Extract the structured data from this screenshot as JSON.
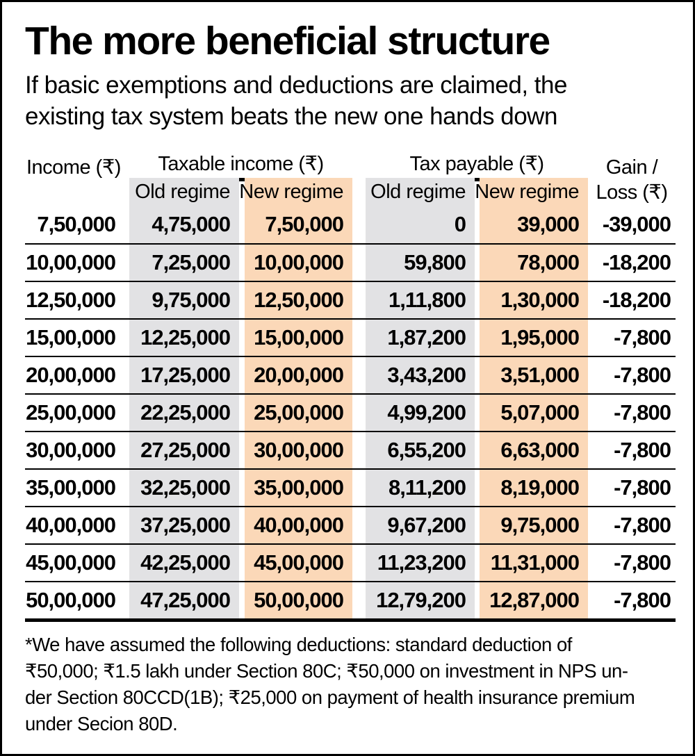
{
  "header": {
    "title": "The more beneficial structure",
    "subtitle_lines": [
      "If basic exemptions and deductions are claimed, the",
      "existing tax system beats the new one hands down"
    ]
  },
  "table": {
    "col_income": "Income (₹)",
    "group_taxable": "Taxable income (₹)",
    "group_tax_payable": "Tax payable (₹)",
    "col_gain_line1": "Gain /",
    "col_gain_line2": "Loss (₹)",
    "sub_old": "Old regime",
    "sub_new": "New regime",
    "rows": [
      {
        "income": "7,50,000",
        "taxable_old": "4,75,000",
        "taxable_new": "7,50,000",
        "tax_old": "0",
        "tax_new": "39,000",
        "gain_loss": "-39,000"
      },
      {
        "income": "10,00,000",
        "taxable_old": "7,25,000",
        "taxable_new": "10,00,000",
        "tax_old": "59,800",
        "tax_new": "78,000",
        "gain_loss": "-18,200"
      },
      {
        "income": "12,50,000",
        "taxable_old": "9,75,000",
        "taxable_new": "12,50,000",
        "tax_old": "1,11,800",
        "tax_new": "1,30,000",
        "gain_loss": "-18,200"
      },
      {
        "income": "15,00,000",
        "taxable_old": "12,25,000",
        "taxable_new": "15,00,000",
        "tax_old": "1,87,200",
        "tax_new": "1,95,000",
        "gain_loss": "-7,800"
      },
      {
        "income": "20,00,000",
        "taxable_old": "17,25,000",
        "taxable_new": "20,00,000",
        "tax_old": "3,43,200",
        "tax_new": "3,51,000",
        "gain_loss": "-7,800"
      },
      {
        "income": "25,00,000",
        "taxable_old": "22,25,000",
        "taxable_new": "25,00,000",
        "tax_old": "4,99,200",
        "tax_new": "5,07,000",
        "gain_loss": "-7,800"
      },
      {
        "income": "30,00,000",
        "taxable_old": "27,25,000",
        "taxable_new": "30,00,000",
        "tax_old": "6,55,200",
        "tax_new": "6,63,000",
        "gain_loss": "-7,800"
      },
      {
        "income": "35,00,000",
        "taxable_old": "32,25,000",
        "taxable_new": "35,00,000",
        "tax_old": "8,11,200",
        "tax_new": "8,19,000",
        "gain_loss": "-7,800"
      },
      {
        "income": "40,00,000",
        "taxable_old": "37,25,000",
        "taxable_new": "40,00,000",
        "tax_old": "9,67,200",
        "tax_new": "9,75,000",
        "gain_loss": "-7,800"
      },
      {
        "income": "45,00,000",
        "taxable_old": "42,25,000",
        "taxable_new": "45,00,000",
        "tax_old": "11,23,200",
        "tax_new": "11,31,000",
        "gain_loss": "-7,800"
      },
      {
        "income": "50,00,000",
        "taxable_old": "47,25,000",
        "taxable_new": "50,00,000",
        "tax_old": "12,79,200",
        "tax_new": "12,87,000",
        "gain_loss": "-7,800"
      }
    ]
  },
  "footnote": {
    "lines": [
      "*We have assumed the following deductions: standard deduction of",
      "₹50,000; ₹1.5 lakh under Section 80C; ₹50,000 on investment in NPS un-",
      "der Section 80CCD(1B); ₹25,000 on payment of health insurance premium",
      "under Secion 80D."
    ]
  },
  "colors": {
    "old_regime_bg": "#e2e2e4",
    "new_regime_bg": "#fbd8b8",
    "text": "#000000",
    "frame": "#000000"
  },
  "chart_data": {
    "type": "table",
    "title": "The more beneficial structure",
    "subtitle": "If basic exemptions and deductions are claimed, the existing tax system beats the new one hands down",
    "columns": [
      "Income (₹)",
      "Taxable income (₹) — Old regime",
      "Taxable income (₹) — New regime",
      "Tax payable (₹) — Old regime",
      "Tax payable (₹) — New regime",
      "Gain / Loss (₹)"
    ],
    "rows": [
      [
        750000,
        475000,
        750000,
        0,
        39000,
        -39000
      ],
      [
        1000000,
        725000,
        1000000,
        59800,
        78000,
        -18200
      ],
      [
        1250000,
        975000,
        1250000,
        111800,
        130000,
        -18200
      ],
      [
        1500000,
        1225000,
        1500000,
        187200,
        195000,
        -7800
      ],
      [
        2000000,
        1725000,
        2000000,
        343200,
        351000,
        -7800
      ],
      [
        2500000,
        2225000,
        2500000,
        499200,
        507000,
        -7800
      ],
      [
        3000000,
        2725000,
        3000000,
        655200,
        663000,
        -7800
      ],
      [
        3500000,
        3225000,
        3500000,
        811200,
        819000,
        -7800
      ],
      [
        4000000,
        3725000,
        4000000,
        967200,
        975000,
        -7800
      ],
      [
        4500000,
        4225000,
        4500000,
        1123200,
        1131000,
        -7800
      ],
      [
        5000000,
        4725000,
        5000000,
        1279200,
        1287000,
        -7800
      ]
    ],
    "footnote": "*We have assumed the following deductions: standard deduction of ₹50,000; ₹1.5 lakh under Section 80C; ₹50,000 on investment in NPS under Section 80CCD(1B); ₹25,000 on payment of health insurance premium under Secion 80D."
  }
}
